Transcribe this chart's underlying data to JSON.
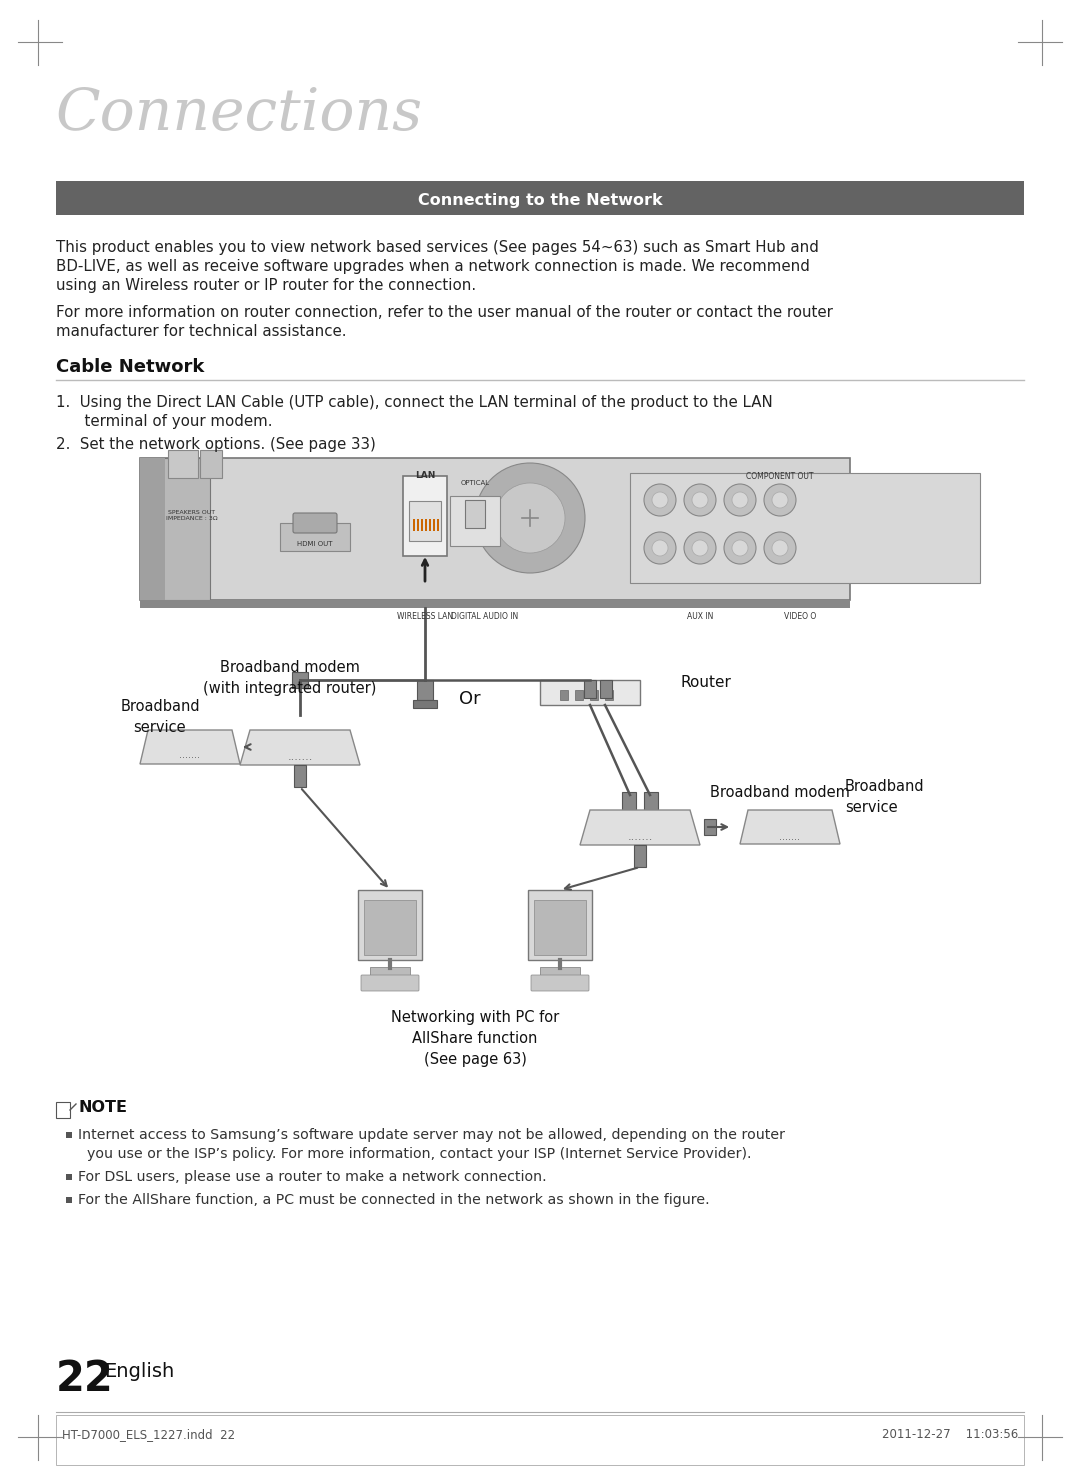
{
  "page_title": "Connections",
  "section_header": "Connecting to the Network",
  "header_bg": "#636363",
  "header_text_color": "#ffffff",
  "body_text_1a": "This product enables you to view network based services (See pages 54~63) such as Smart Hub and",
  "body_text_1b": "BD-LIVE, as well as receive software upgrades when a network connection is made. We recommend",
  "body_text_1c": "using an Wireless router or IP router for the connection.",
  "body_text_2a": "For more information on router connection, refer to the user manual of the router or contact the router",
  "body_text_2b": "manufacturer for technical assistance.",
  "cable_network_title": "Cable Network",
  "step1a": "1.  Using the Direct LAN Cable (UTP cable), connect the LAN terminal of the product to the LAN",
  "step1b": "      terminal of your modem.",
  "step2": "2.  Set the network options. (See page 33)",
  "note_header": "NOTE",
  "note_bullet1a": "Internet access to Samsung’s software update server may not be allowed, depending on the router",
  "note_bullet1b": "  you use or the ISP’s policy. For more information, contact your ISP (Internet Service Provider).",
  "note_bullet2": "For DSL users, please use a router to make a network connection.",
  "note_bullet3": "For the AllShare function, a PC must be connected in the network as shown in the figure.",
  "page_number": "22",
  "page_lang": "English",
  "footer_left": "HT-D7000_ELS_1227.indd  22",
  "footer_right": "2011-12-27    11:03:56",
  "bg_color": "#ffffff",
  "text_color": "#333333",
  "label_router": "Router",
  "label_broadband_modem": "Broadband modem\n(with integrated router)",
  "label_or": "Or",
  "label_broadband_modem2": "Broadband modem",
  "label_broadband_service_left": "Broadband\nservice",
  "label_broadband_service_right": "Broadband\nservice",
  "label_networking": "Networking with PC for\nAllShare function\n(See page 63)"
}
